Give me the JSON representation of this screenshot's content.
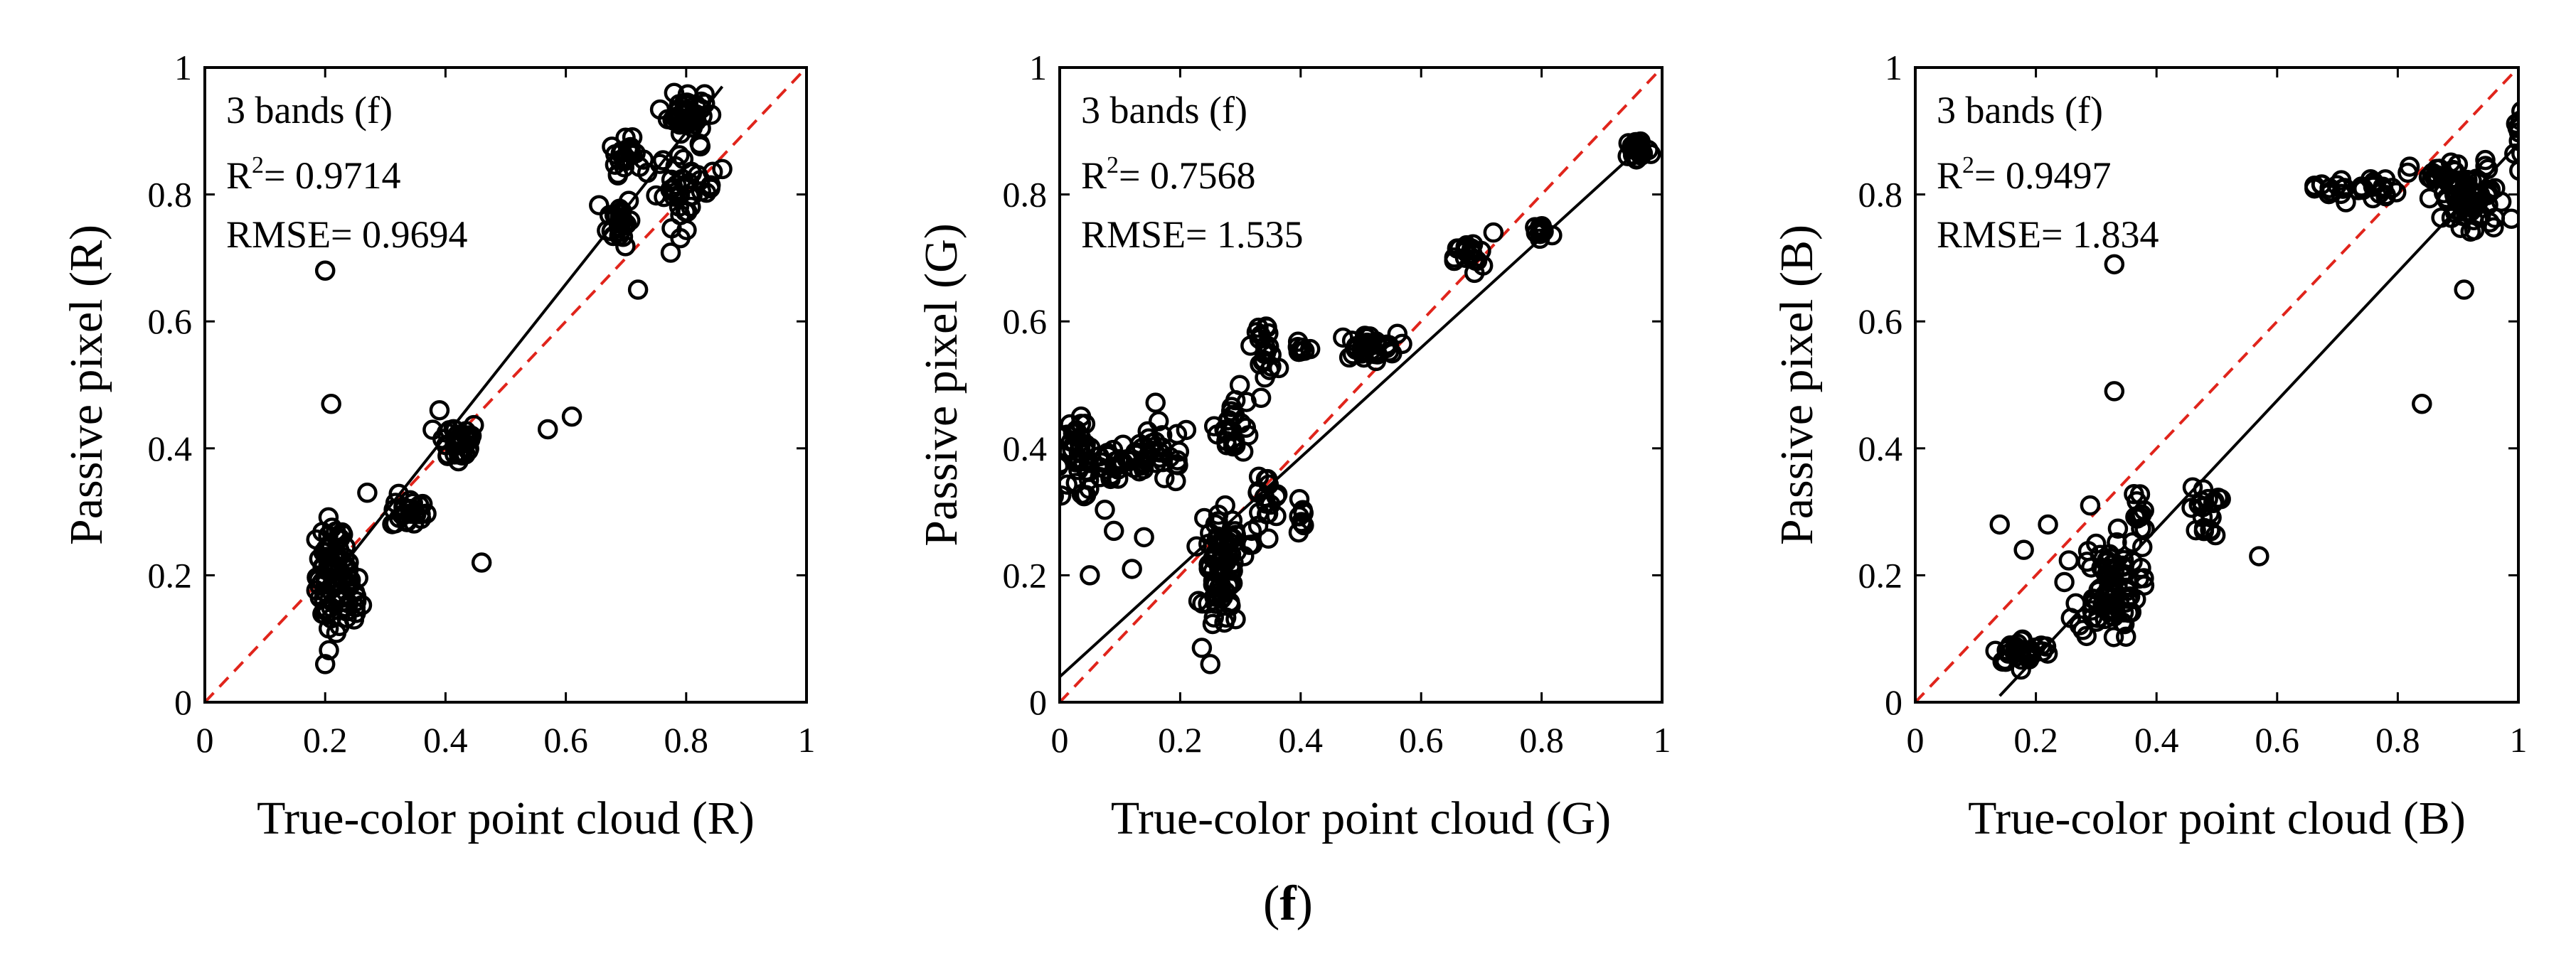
{
  "figure": {
    "caption_open": "(",
    "caption_letter": "f",
    "caption_close": ")"
  },
  "chart_data": [
    {
      "type": "scatter",
      "panel": "R",
      "xlabel": "True-color point cloud (R)",
      "ylabel": "Passive pixel (R)",
      "xlim": [
        0,
        1
      ],
      "ylim": [
        0,
        1
      ],
      "xticks": [
        "0",
        "0.2",
        "0.4",
        "0.6",
        "0.8",
        "1"
      ],
      "yticks": [
        "0",
        "0.2",
        "0.4",
        "0.6",
        "0.8",
        "1"
      ],
      "annotation": {
        "line1": "3  bands (f)",
        "r2_prefix": "R",
        "r2_sup": "2",
        "r2_value": "= 0.9714",
        "rmse": "RMSE= 0.9694"
      },
      "fit": {
        "x": [
          0.2,
          0.86
        ],
        "y": [
          0.18,
          0.97
        ],
        "color": "#000000"
      },
      "identity": {
        "x": [
          0,
          1
        ],
        "y": [
          0,
          1
        ],
        "color": "#e0241b"
      },
      "clusters": [
        {
          "cx": 0.21,
          "cy": 0.2,
          "sx": 0.012,
          "sy": 0.045,
          "n": 70
        },
        {
          "cx": 0.24,
          "cy": 0.17,
          "sx": 0.01,
          "sy": 0.03,
          "n": 25
        },
        {
          "cx": 0.34,
          "cy": 0.3,
          "sx": 0.015,
          "sy": 0.013,
          "n": 25
        },
        {
          "cx": 0.42,
          "cy": 0.41,
          "sx": 0.018,
          "sy": 0.018,
          "n": 35
        },
        {
          "cx": 0.69,
          "cy": 0.76,
          "sx": 0.01,
          "sy": 0.02,
          "n": 25
        },
        {
          "cx": 0.7,
          "cy": 0.86,
          "sx": 0.013,
          "sy": 0.013,
          "n": 25
        },
        {
          "cx": 0.8,
          "cy": 0.93,
          "sx": 0.015,
          "sy": 0.016,
          "n": 45
        },
        {
          "cx": 0.8,
          "cy": 0.81,
          "sx": 0.025,
          "sy": 0.03,
          "n": 40
        }
      ],
      "points": [
        {
          "x": 0.2,
          "y": 0.68
        },
        {
          "x": 0.21,
          "y": 0.47
        },
        {
          "x": 0.2,
          "y": 0.06
        },
        {
          "x": 0.46,
          "y": 0.22
        },
        {
          "x": 0.57,
          "y": 0.43
        },
        {
          "x": 0.61,
          "y": 0.45
        },
        {
          "x": 0.72,
          "y": 0.65
        },
        {
          "x": 0.27,
          "y": 0.33
        },
        {
          "x": 0.78,
          "y": 0.96
        },
        {
          "x": 0.86,
          "y": 0.84
        },
        {
          "x": 0.39,
          "y": 0.46
        }
      ]
    },
    {
      "type": "scatter",
      "panel": "G",
      "xlabel": "True-color point cloud (G)",
      "ylabel": "Passive pixel (G)",
      "xlim": [
        0,
        1
      ],
      "ylim": [
        0,
        1
      ],
      "xticks": [
        "0",
        "0.2",
        "0.4",
        "0.6",
        "0.8",
        "1"
      ],
      "yticks": [
        "0",
        "0.2",
        "0.4",
        "0.6",
        "0.8",
        "1"
      ],
      "annotation": {
        "line1": "3  bands (f)",
        "r2_prefix": "R",
        "r2_sup": "2",
        "r2_value": "= 0.7568",
        "rmse": "RMSE= 1.535"
      },
      "fit": {
        "x": [
          0,
          0.96
        ],
        "y": [
          0.04,
          0.87
        ],
        "color": "#000000"
      },
      "identity": {
        "x": [
          0,
          1
        ],
        "y": [
          0,
          1
        ],
        "color": "#e0241b"
      },
      "clusters": [
        {
          "cx": 0.03,
          "cy": 0.38,
          "sx": 0.02,
          "sy": 0.03,
          "n": 40
        },
        {
          "cx": 0.1,
          "cy": 0.38,
          "sx": 0.035,
          "sy": 0.025,
          "n": 35
        },
        {
          "cx": 0.17,
          "cy": 0.39,
          "sx": 0.025,
          "sy": 0.025,
          "n": 25
        },
        {
          "cx": 0.27,
          "cy": 0.2,
          "sx": 0.015,
          "sy": 0.045,
          "n": 80
        },
        {
          "cx": 0.29,
          "cy": 0.44,
          "sx": 0.015,
          "sy": 0.025,
          "n": 25
        },
        {
          "cx": 0.34,
          "cy": 0.31,
          "sx": 0.015,
          "sy": 0.03,
          "n": 20
        },
        {
          "cx": 0.34,
          "cy": 0.56,
          "sx": 0.01,
          "sy": 0.02,
          "n": 20
        },
        {
          "cx": 0.4,
          "cy": 0.55,
          "sx": 0.005,
          "sy": 0.008,
          "n": 8
        },
        {
          "cx": 0.4,
          "cy": 0.29,
          "sx": 0.004,
          "sy": 0.02,
          "n": 8
        },
        {
          "cx": 0.51,
          "cy": 0.56,
          "sx": 0.025,
          "sy": 0.01,
          "n": 35
        },
        {
          "cx": 0.68,
          "cy": 0.7,
          "sx": 0.012,
          "sy": 0.013,
          "n": 20
        },
        {
          "cx": 0.8,
          "cy": 0.74,
          "sx": 0.01,
          "sy": 0.01,
          "n": 15
        },
        {
          "cx": 0.96,
          "cy": 0.87,
          "sx": 0.01,
          "sy": 0.01,
          "n": 25
        }
      ],
      "points": [
        {
          "x": 0.05,
          "y": 0.2
        },
        {
          "x": 0.09,
          "y": 0.27
        },
        {
          "x": 0.12,
          "y": 0.21
        },
        {
          "x": 0.14,
          "y": 0.26
        },
        {
          "x": 0.24,
          "y": 0.29
        },
        {
          "x": 0.25,
          "y": 0.06
        },
        {
          "x": 0.33,
          "y": 0.59
        },
        {
          "x": 0.72,
          "y": 0.74
        }
      ]
    },
    {
      "type": "scatter",
      "panel": "B",
      "xlabel": "True-color point cloud (B)",
      "ylabel": "Passive pixel (B)",
      "xlim": [
        0,
        1
      ],
      "ylim": [
        0,
        1
      ],
      "xticks": [
        "0",
        "0.2",
        "0.4",
        "0.6",
        "0.8",
        "1"
      ],
      "yticks": [
        "0",
        "0.2",
        "0.4",
        "0.6",
        "0.8",
        "1"
      ],
      "annotation": {
        "line1": "3  bands (f)",
        "r2_prefix": "R",
        "r2_sup": "2",
        "r2_value": "= 0.9497",
        "rmse": "RMSE= 1.834"
      },
      "fit": {
        "x": [
          0.14,
          1.0
        ],
        "y": [
          0.01,
          0.88
        ],
        "color": "#000000"
      },
      "identity": {
        "x": [
          0,
          1
        ],
        "y": [
          0,
          1
        ],
        "color": "#e0241b"
      },
      "clusters": [
        {
          "cx": 0.18,
          "cy": 0.08,
          "sx": 0.025,
          "sy": 0.01,
          "n": 35
        },
        {
          "cx": 0.32,
          "cy": 0.18,
          "sx": 0.025,
          "sy": 0.04,
          "n": 90
        },
        {
          "cx": 0.37,
          "cy": 0.29,
          "sx": 0.006,
          "sy": 0.025,
          "n": 12
        },
        {
          "cx": 0.48,
          "cy": 0.3,
          "sx": 0.012,
          "sy": 0.02,
          "n": 20
        },
        {
          "cx": 0.73,
          "cy": 0.81,
          "sx": 0.035,
          "sy": 0.01,
          "n": 30
        },
        {
          "cx": 0.86,
          "cy": 0.83,
          "sx": 0.02,
          "sy": 0.01,
          "n": 15
        },
        {
          "cx": 0.92,
          "cy": 0.79,
          "sx": 0.03,
          "sy": 0.03,
          "n": 70
        },
        {
          "cx": 1.0,
          "cy": 0.89,
          "sx": 0.003,
          "sy": 0.02,
          "n": 10
        }
      ],
      "points": [
        {
          "x": 0.33,
          "y": 0.69
        },
        {
          "x": 0.33,
          "y": 0.49
        },
        {
          "x": 0.84,
          "y": 0.47
        },
        {
          "x": 0.91,
          "y": 0.65
        },
        {
          "x": 0.57,
          "y": 0.23
        },
        {
          "x": 0.14,
          "y": 0.28
        },
        {
          "x": 0.22,
          "y": 0.28
        },
        {
          "x": 0.18,
          "y": 0.24
        },
        {
          "x": 0.29,
          "y": 0.31
        }
      ]
    }
  ]
}
